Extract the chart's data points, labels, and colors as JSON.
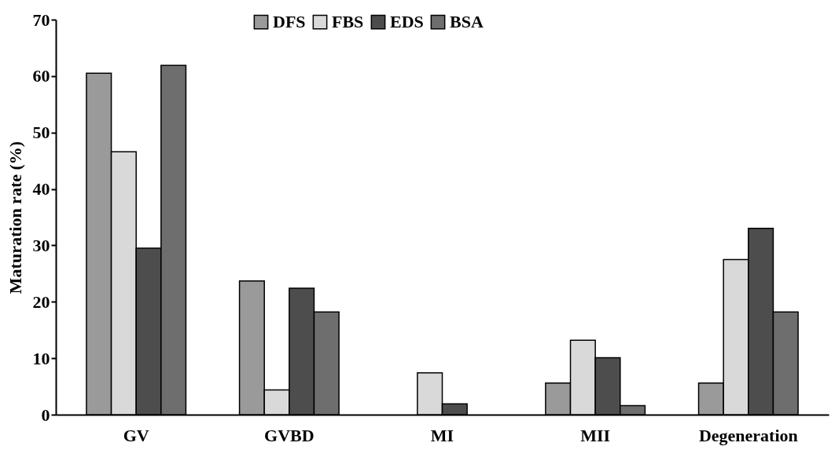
{
  "chart_data": {
    "type": "bar",
    "ylabel": "Maturation rate (%)",
    "categories": [
      "GV",
      "GVBD",
      "MI",
      "MII",
      "Degeneration"
    ],
    "series": [
      {
        "name": "DFS",
        "color": "#9a9a9a",
        "values": [
          60.5,
          23.7,
          0,
          5.6,
          5.6
        ]
      },
      {
        "name": "FBS",
        "color": "#d9d9d9",
        "values": [
          46.6,
          4.4,
          7.4,
          13.2,
          27.5
        ]
      },
      {
        "name": "EDS",
        "color": "#4d4d4d",
        "values": [
          29.5,
          22.4,
          1.9,
          10.1,
          33.0
        ]
      },
      {
        "name": "BSA",
        "color": "#6e6e6e",
        "values": [
          61.9,
          18.2,
          0,
          1.6,
          18.2
        ]
      }
    ],
    "ylim": [
      0,
      70
    ],
    "yticks": [
      0,
      10,
      20,
      30,
      40,
      50,
      60,
      70
    ],
    "grid": false,
    "legend": "top"
  }
}
